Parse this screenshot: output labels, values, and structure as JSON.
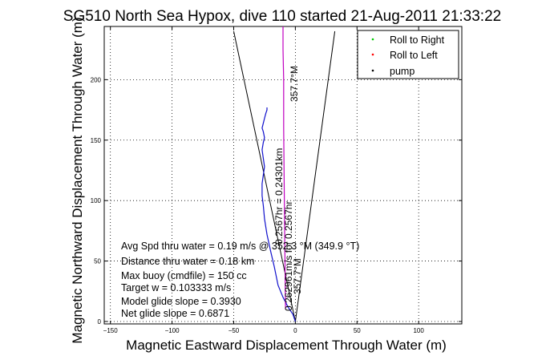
{
  "chart_data": {
    "type": "line",
    "title": "SG510 North Sea Hypox, dive 110 started 21-Aug-2011 21:33:22",
    "xlabel": "Magnetic Eastward Displacement Through Water (m)",
    "ylabel": "Magnetic Northward Displacement Through Water (m)",
    "xlim": [
      -155,
      135
    ],
    "ylim": [
      -2,
      244
    ],
    "x_ticks": [
      -150,
      -100,
      -50,
      0,
      50,
      100
    ],
    "y_ticks": [
      0,
      50,
      100,
      150,
      200
    ],
    "x_tick_labels": [
      "−150",
      "−100",
      "−50",
      "0",
      "50",
      "100"
    ],
    "y_tick_labels": [
      "0",
      "50",
      "100",
      "150",
      "200"
    ],
    "grid": true,
    "legend": {
      "placement": "top-right",
      "entries": [
        {
          "label": "Roll to Right",
          "color": "#00cc00",
          "marker": "dot"
        },
        {
          "label": "Roll to Left",
          "color": "#ff0000",
          "marker": "dot"
        },
        {
          "label": "pump",
          "color": "#000000",
          "marker": "dot"
        }
      ]
    },
    "series": [
      {
        "color": "#1010cc",
        "x": [
          0,
          -2,
          -6,
          -10,
          -14,
          -17,
          -20,
          -23,
          -25,
          -26,
          -27,
          -27,
          -26,
          -25,
          -26,
          -27,
          -26,
          -25,
          -26,
          -27,
          -26,
          -25,
          -24,
          -23,
          -23
        ],
        "y": [
          0,
          6,
          12,
          20,
          30,
          45,
          58,
          72,
          85,
          96,
          104,
          114,
          121,
          128,
          135,
          142,
          148,
          152,
          157,
          160,
          164,
          168,
          172,
          175,
          177
        ]
      },
      {
        "color": "#c000c0",
        "x": [
          -8,
          -8.5,
          -9,
          -9.5,
          -9.5,
          -10,
          -10
        ],
        "y": [
          10,
          60,
          110,
          160,
          200,
          225,
          244
        ]
      }
    ],
    "heading_lines": [
      {
        "color": "#000000",
        "x": [
          0,
          -50
        ],
        "y": [
          0,
          240
        ]
      },
      {
        "color": "#000000",
        "x": [
          0,
          32
        ],
        "y": [
          0,
          240
        ]
      }
    ],
    "annotations": [
      {
        "text": "357.7°M"
      },
      {
        "text": "0.2567hr = 0.24301km"
      },
      {
        "text": "0.262961m/s for 0.2567hr"
      },
      {
        "text": "357.7°M"
      }
    ],
    "stats": [
      "Avg Spd thru water =  0.19 m/s @  352.3    °M (349.9 °T)",
      "Distance thru water =  0.18 km",
      "Max buoy (cmdfile) = 150 cc",
      "Target w = 0.103333 m/s",
      "Model glide slope = 0.3930",
      "Net glide slope = 0.6871"
    ]
  }
}
